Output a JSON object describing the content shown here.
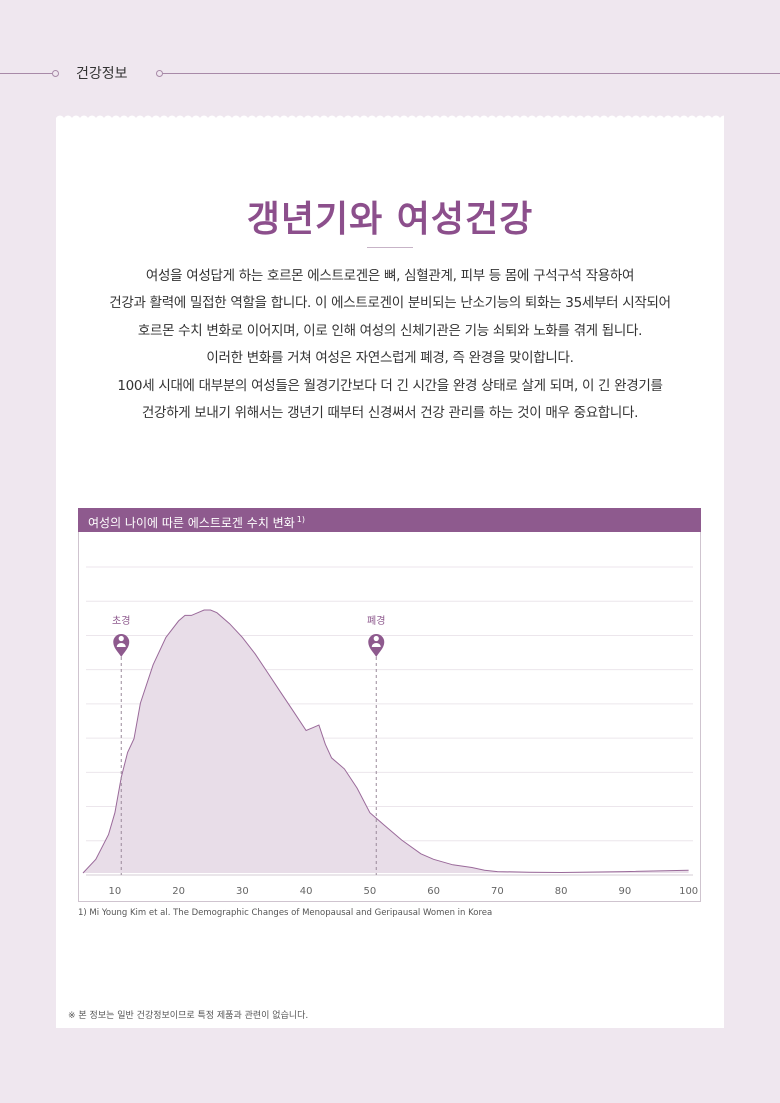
{
  "header": {
    "section_label": "건강정보"
  },
  "article": {
    "title": "갱년기와 여성건강",
    "intro_lines": [
      "여성을 여성답게 하는 호르몬 에스트로겐은 뼈, 심혈관계, 피부 등 몸에 구석구석 작용하여",
      "건강과 활력에 밀접한 역할을 합니다. 이 에스트로겐이 분비되는 난소기능의 퇴화는 35세부터 시작되어",
      "호르몬 수치 변화로 이어지며, 이로 인해 여성의 신체기관은 기능 쇠퇴와 노화를 겪게 됩니다.",
      "이러한 변화를 거쳐 여성은 자연스럽게 폐경, 즉 완경을 맞이합니다.",
      "100세 시대에 대부분의 여성들은 월경기간보다 더 긴 시간을 완경 상태로 살게 되며, 이 긴 완경기를",
      "건강하게 보내기 위해서는 갱년기 때부터 신경써서 건강 관리를 하는 것이 매우 중요합니다."
    ]
  },
  "chart_data": {
    "type": "area",
    "title": "여성의 나이에 따른 에스트로겐 수치 변화",
    "title_superscript": "1)",
    "xlabel": "",
    "ylabel": "",
    "xlim": [
      5,
      101
    ],
    "ylim": [
      0,
      100
    ],
    "x_ticks": [
      10,
      20,
      30,
      40,
      50,
      60,
      70,
      80,
      90,
      100
    ],
    "grid": true,
    "x": [
      5,
      7,
      9,
      10,
      11,
      12,
      13,
      14,
      16,
      18,
      20,
      21,
      22,
      23,
      24,
      25,
      26,
      28,
      30,
      32,
      34,
      36,
      38,
      40,
      41,
      42,
      43,
      44,
      45,
      46,
      48,
      50,
      52,
      55,
      58,
      60,
      63,
      66,
      68,
      70,
      75,
      80,
      90,
      100
    ],
    "values": [
      0,
      5,
      14,
      22,
      35,
      44,
      49,
      62,
      76,
      86,
      92,
      94,
      94,
      95,
      96,
      96,
      95,
      91,
      86,
      80,
      73,
      66,
      59,
      52,
      53,
      54,
      47,
      42,
      40,
      38,
      31,
      22,
      18,
      12,
      7,
      5,
      3,
      2,
      1,
      0.5,
      0.3,
      0.2,
      0.5,
      1
    ],
    "markers": [
      {
        "label": "초경",
        "x": 11
      },
      {
        "label": "폐경",
        "x": 51
      }
    ],
    "colors": {
      "fill": "#e8dde8",
      "line": "#9a6a9a",
      "marker": "#8e5a8e"
    }
  },
  "footnote": "1) Mi Young Kim et al. The Demographic Changes of Menopausal and Geripausal Women in Korea",
  "disclaimer": "※ 본 정보는 일반 건강정보이므로 특정 제품과 관련이 없습니다."
}
